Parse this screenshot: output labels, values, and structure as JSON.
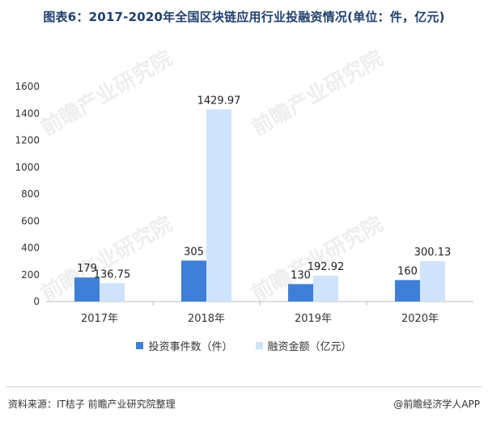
{
  "title": "图表6：2017-2020年全国区块链应用行业投融资情况(单位：件，亿元)",
  "watermark_text": "前瞻产业研究院",
  "colors": {
    "series1": "#3f7fd8",
    "series2": "#cfe3fb",
    "axis_text": "#333333",
    "title": "#1f3f6e"
  },
  "chart_data": {
    "type": "bar",
    "categories": [
      "2017年",
      "2018年",
      "2019年",
      "2020年"
    ],
    "series": [
      {
        "name": "投资事件数（件）",
        "values": [
          179,
          305,
          130,
          160
        ],
        "labels": [
          "179",
          "305",
          "130",
          "160"
        ]
      },
      {
        "name": "融资金额（亿元）",
        "values": [
          136.75,
          1429.97,
          192.92,
          300.13
        ],
        "labels": [
          "136.75",
          "1429.97",
          "192.92",
          "300.13"
        ]
      }
    ],
    "yticks": [
      0,
      200,
      400,
      600,
      800,
      1000,
      1200,
      1400,
      1600
    ],
    "ylim": [
      0,
      1600
    ],
    "grid": false,
    "legend_position": "bottom"
  },
  "footer": {
    "source": "资料来源：IT桔子 前瞻产业研究院整理",
    "brand": "@前瞻经济学人APP"
  }
}
